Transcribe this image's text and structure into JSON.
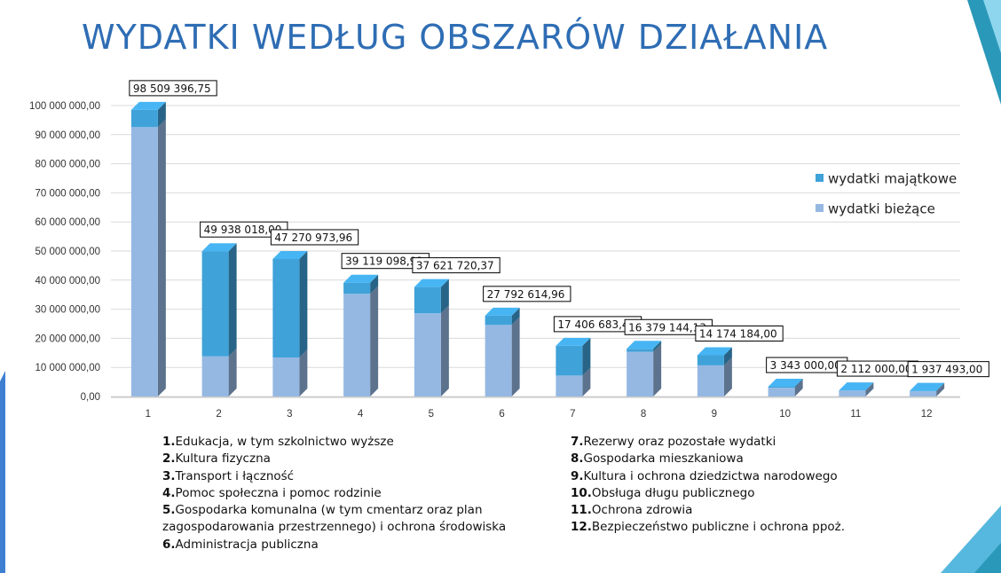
{
  "slide": {
    "title": "WYDATKI WEDŁUG OBSZARÓW DZIAŁANIA",
    "accent_color": "#2e6db4"
  },
  "chart_data": {
    "type": "bar",
    "stacked": true,
    "title": "",
    "xlabel": "",
    "ylabel": "",
    "categories": [
      "1",
      "2",
      "3",
      "4",
      "5",
      "6",
      "7",
      "8",
      "9",
      "10",
      "11",
      "12"
    ],
    "series": [
      {
        "name": "wydatki bieżące",
        "color": "#95b8e3",
        "values": [
          92600000,
          13800000,
          13400000,
          35300000,
          28600000,
          24600000,
          7200000,
          15400000,
          10700000,
          3000000,
          2050000,
          1800000
        ]
      },
      {
        "name": "wydatki majątkowe",
        "color": "#3fa2d9",
        "values": [
          5909396.75,
          36138018.0,
          33870973.96,
          3819098.91,
          9021720.37,
          3192614.96,
          10206683.47,
          979144.13,
          3474184.0,
          343000.0,
          62000.0,
          137493.0
        ]
      }
    ],
    "totals": [
      98509396.75,
      49938018.0,
      47270973.96,
      39119098.91,
      37621720.37,
      27792614.96,
      17406683.47,
      16379144.13,
      14174184.0,
      3343000.0,
      2112000.0,
      1937493.0
    ],
    "data_labels": [
      "98 509 396,75",
      "49 938 018,00",
      "47 270 973,96",
      "39 119 098,91",
      "37 621 720,37",
      "27 792 614,96",
      "17 406 683,47",
      "16 379 144,13",
      "14 174 184,00",
      "3 343 000,00",
      "2 112 000,00",
      "1 937 493,00"
    ],
    "y_ticks": [
      "0,00",
      "10 000 000,00",
      "20 000 000,00",
      "30 000 000,00",
      "40 000 000,00",
      "50 000 000,00",
      "60 000 000,00",
      "70 000 000,00",
      "80 000 000,00",
      "90 000 000,00",
      "100 000 000,00"
    ],
    "ylim": [
      0,
      100000000
    ],
    "grid": true,
    "legend_position": "right"
  },
  "legend": [
    {
      "label": "wydatki majątkowe",
      "color": "#3fa2d9"
    },
    {
      "label": "wydatki bieżące",
      "color": "#95b8e3"
    }
  ],
  "category_legend": {
    "left": [
      [
        {
          "num": "1.",
          "text": "Edukacja, w tym szkolnictwo wyższe"
        }
      ],
      [
        {
          "num": "2.",
          "text": "Kultura fizyczna"
        }
      ],
      [
        {
          "num": "3.",
          "text": "Transport i łączność"
        }
      ],
      [
        {
          "num": "4.",
          "text": "Pomoc społeczna i pomoc rodzinie"
        }
      ],
      [
        {
          "num": "5.",
          "text": "Gospodarka komunalna (w tym cmentarz oraz plan"
        }
      ],
      [
        {
          "num": "",
          "text": "zagospodarowania przestrzennego) i  ochrona środowiska"
        }
      ],
      [
        {
          "num": "6.",
          "text": "Administracja publiczna"
        }
      ]
    ],
    "right": [
      [
        {
          "num": "7.",
          "text": "Rezerwy oraz pozostałe wydatki"
        }
      ],
      [
        {
          "num": "8.",
          "text": "Gospodarka mieszkaniowa"
        }
      ],
      [
        {
          "num": "9.",
          "text": "Kultura i ochrona dziedzictwa narodowego"
        }
      ],
      [
        {
          "num": "10.",
          "text": "Obsługa długu publicznego"
        }
      ],
      [
        {
          "num": "11.",
          "text": "Ochrona zdrowia"
        }
      ],
      [
        {
          "num": "12.",
          "text": "Bezpieczeństwo publiczne i ochrona ppoż."
        }
      ]
    ]
  }
}
